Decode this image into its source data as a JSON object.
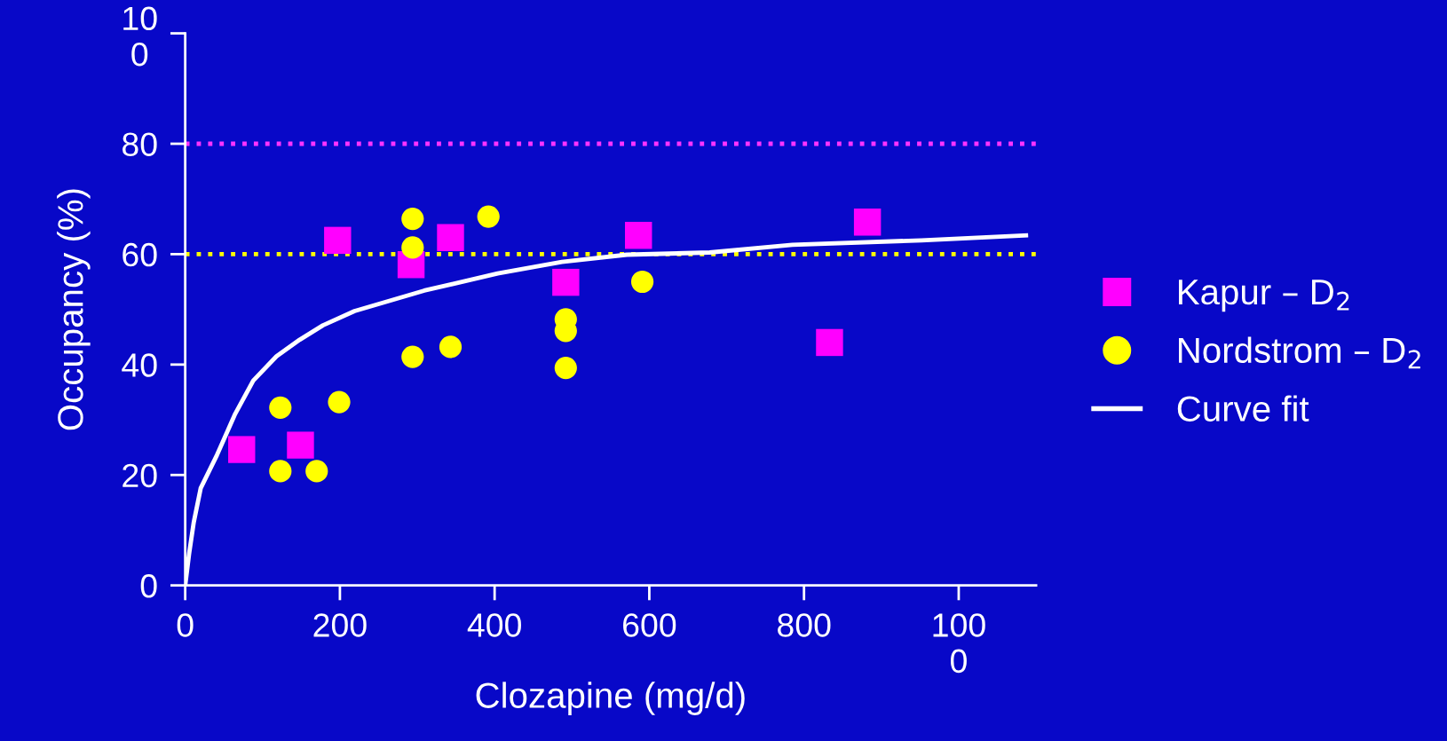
{
  "chart_data": {
    "type": "scatter",
    "xlabel": "Clozapine (mg/d)",
    "ylabel": "Occupancy (%)",
    "xlim": [
      0,
      1100
    ],
    "ylim": [
      0,
      100
    ],
    "xticks": [
      0,
      200,
      400,
      600,
      800,
      {
        "value": 1000,
        "label": "100\n0"
      }
    ],
    "yticks": [
      0,
      20,
      40,
      60,
      80,
      {
        "value": 100,
        "label": "10\n0"
      }
    ],
    "grid": false,
    "legend": "right",
    "series": [
      {
        "name": "Kapur – D$_{2}$",
        "marker": "square",
        "color": "#ff00ff",
        "x": [
          73,
          149,
          197,
          292,
          343,
          492,
          586,
          833,
          882
        ],
        "values": [
          24.6,
          25.4,
          62.5,
          58.1,
          63,
          54.9,
          63.4,
          44,
          65.8
        ]
      },
      {
        "name": "Nordstrom – D$_{2}$",
        "marker": "circle",
        "color": "#ffff00",
        "x": [
          123,
          123,
          170,
          199,
          294,
          294,
          294,
          343,
          392,
          492,
          492,
          492,
          591
        ],
        "values": [
          32.2,
          20.7,
          20.7,
          33.2,
          66.4,
          61.2,
          41.4,
          43.2,
          66.8,
          48.2,
          46.1,
          39.4,
          55
        ]
      },
      {
        "name": "Curve fit",
        "type": "line",
        "marker": "none",
        "line_style": "solid",
        "color": "#ffffff",
        "x": [
          0,
          5,
          11,
          20,
          41,
          64,
          88,
          118,
          148,
          178,
          219,
          309,
          404,
          487,
          571,
          678,
          785,
          952,
          1087
        ],
        "values": [
          0,
          5.7,
          11.4,
          17.6,
          23.6,
          30.9,
          37.1,
          41.5,
          44.5,
          47.1,
          49.7,
          53.4,
          56.5,
          58.6,
          59.9,
          60.3,
          61.7,
          62.5,
          63.4
        ]
      }
    ],
    "ref_lines": [
      {
        "axis": "y",
        "value": 80,
        "label": null,
        "color": "#ff33ff",
        "line_style": "dotted"
      },
      {
        "axis": "y",
        "value": 60,
        "label": null,
        "color": "#ffff00",
        "line_style": "dotted"
      }
    ]
  }
}
